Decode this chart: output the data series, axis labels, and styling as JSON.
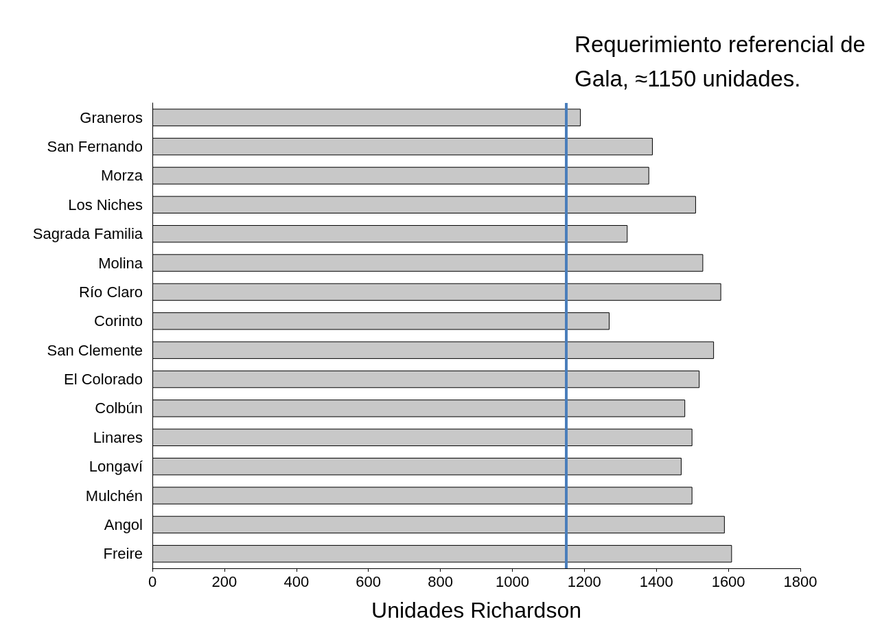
{
  "chart_data": {
    "type": "bar",
    "orientation": "horizontal",
    "xlabel": "Unidades Richardson",
    "categories": [
      "Graneros",
      "San Fernando",
      "Morza",
      "Los Niches",
      "Sagrada Familia",
      "Molina",
      "Río Claro",
      "Corinto",
      "San Clemente",
      "El Colorado",
      "Colbún",
      "Linares",
      "Longaví",
      "Mulchén",
      "Angol",
      "Freire"
    ],
    "values": [
      1190,
      1390,
      1380,
      1510,
      1320,
      1530,
      1580,
      1270,
      1560,
      1520,
      1480,
      1500,
      1470,
      1500,
      1590,
      1610
    ],
    "color": "#c8c8c8",
    "xlim": [
      0,
      1800
    ],
    "xticks": [
      0,
      200,
      400,
      600,
      800,
      1000,
      1200,
      1400,
      1600,
      1800
    ],
    "grid": false,
    "ref_lines": [
      {
        "axis": "x",
        "value": 1150,
        "label": "Requerimiento referencial de Gala, ≈1150 unidades.",
        "color": "#4a7ebb"
      }
    ]
  }
}
